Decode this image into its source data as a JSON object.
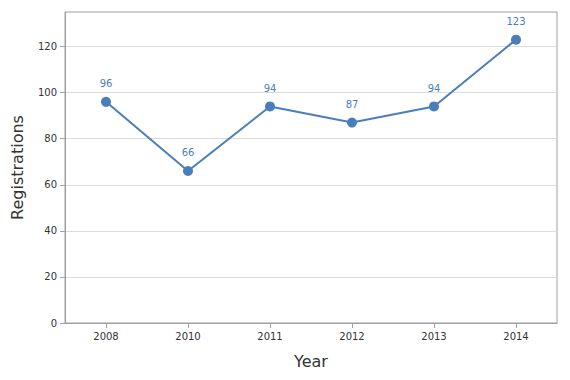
{
  "chart_data": {
    "type": "line",
    "x_label": "Year",
    "y_label": "Registrations",
    "categories": [
      "2008",
      "2010",
      "2011",
      "2012",
      "2013",
      "2014"
    ],
    "values": [
      96,
      66,
      94,
      87,
      94,
      123
    ],
    "color": "#4a7ebb",
    "marker": "circle",
    "ylim": [
      0,
      135
    ],
    "yticks": [
      0,
      20,
      40,
      60,
      80,
      100,
      120
    ],
    "grid": true,
    "data_labels": true
  }
}
